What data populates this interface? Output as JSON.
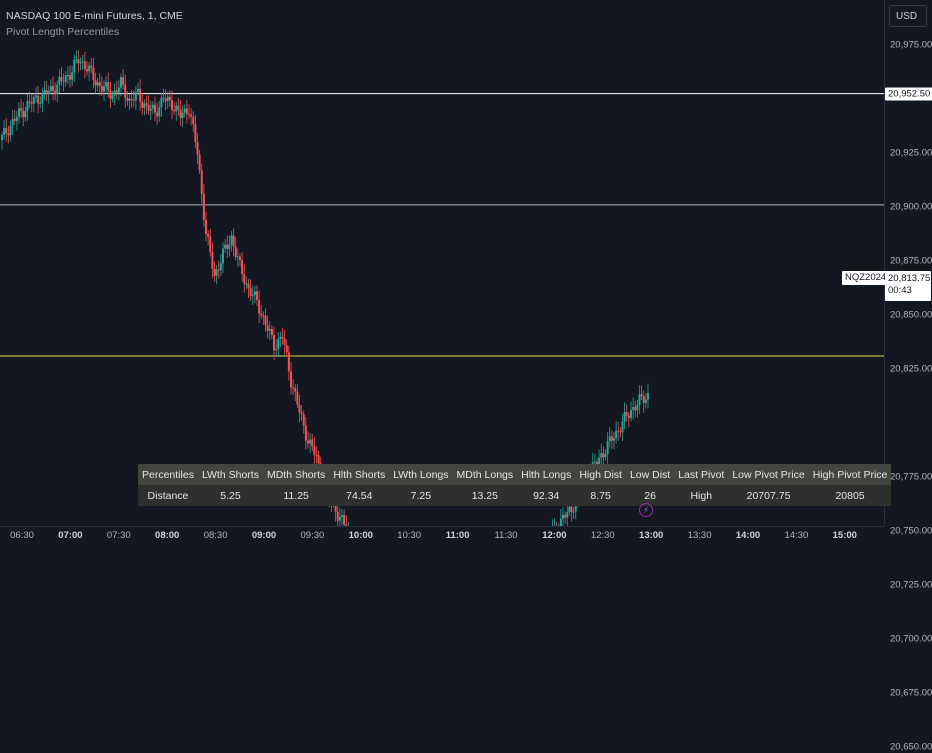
{
  "legend": {
    "title": "NASDAQ 100 E-mini Futures, 1, CME",
    "indicator": "Pivot Length Percentiles"
  },
  "price_scale": {
    "currency": "USD",
    "ticks": [
      {
        "label": "20,975.00",
        "value": 20975
      },
      {
        "label": "20,925.00",
        "value": 20925
      },
      {
        "label": "20,900.00",
        "value": 20900
      },
      {
        "label": "20,875.00",
        "value": 20875
      },
      {
        "label": "20,850.00",
        "value": 20850
      },
      {
        "label": "20,825.00",
        "value": 20825
      },
      {
        "label": "20,775.00",
        "value": 20775
      },
      {
        "label": "20,750.00",
        "value": 20750
      },
      {
        "label": "20,725.00",
        "value": 20725
      },
      {
        "label": "20,700.00",
        "value": 20700
      },
      {
        "label": "20,675.00",
        "value": 20675
      },
      {
        "label": "20,650.00",
        "value": 20650
      }
    ],
    "marked_level": {
      "label": "20,952.50",
      "value": 20952.5
    },
    "current_price": "20,813.75",
    "countdown": "00:43",
    "symbol": "NQZ2024"
  },
  "lines": {
    "white": 20952.5,
    "gray": 20901,
    "yellow": 20831
  },
  "colors": {
    "up": "#26a69a",
    "down": "#ef5350",
    "white_line": "#ffffff",
    "gray_line": "#b2b5be",
    "yellow_line": "#e8d33a"
  },
  "time_axis": {
    "ticks": [
      {
        "label": "06:30",
        "bold": false
      },
      {
        "label": "07:00",
        "bold": true
      },
      {
        "label": "07:30",
        "bold": false
      },
      {
        "label": "08:00",
        "bold": true
      },
      {
        "label": "08:30",
        "bold": false
      },
      {
        "label": "09:00",
        "bold": true
      },
      {
        "label": "09:30",
        "bold": false
      },
      {
        "label": "10:00",
        "bold": true
      },
      {
        "label": "10:30",
        "bold": false
      },
      {
        "label": "11:00",
        "bold": true
      },
      {
        "label": "11:30",
        "bold": false
      },
      {
        "label": "12:00",
        "bold": true
      },
      {
        "label": "12:30",
        "bold": false
      },
      {
        "label": "13:00",
        "bold": true
      },
      {
        "label": "13:30",
        "bold": false
      },
      {
        "label": "14:00",
        "bold": true
      },
      {
        "label": "14:30",
        "bold": false
      },
      {
        "label": "15:00",
        "bold": true
      }
    ]
  },
  "table": {
    "headers": [
      "Percentiles",
      "LWth Shorts",
      "MDth Shorts",
      "Hlth Shorts",
      "LWth Longs",
      "MDth Longs",
      "Hlth Longs",
      "High Dist",
      "Low Dist",
      "Last Pivot",
      "Low Pivot Price",
      "High Pivot Price"
    ],
    "values": [
      "Distance",
      "5.25",
      "11.25",
      "74.54",
      "7.25",
      "13.25",
      "92.34",
      "8.75",
      "26",
      "High",
      "20707.75",
      "20805"
    ]
  },
  "chart_data": {
    "type": "candlestick",
    "x": [
      "06:30",
      "06:35",
      "06:40",
      "06:45",
      "06:50",
      "06:55",
      "07:00",
      "07:05",
      "07:10",
      "07:15",
      "07:20",
      "07:25",
      "07:30",
      "07:35",
      "07:40",
      "07:45",
      "07:50",
      "07:55",
      "08:00",
      "08:05",
      "08:10",
      "08:15",
      "08:20",
      "08:25",
      "08:30",
      "08:35",
      "08:40",
      "08:45",
      "08:50",
      "08:55",
      "09:00",
      "09:05",
      "09:10",
      "09:15",
      "09:20",
      "09:25",
      "09:30",
      "09:35",
      "09:40",
      "09:45",
      "09:50",
      "09:55",
      "10:00",
      "10:05",
      "10:10",
      "10:15",
      "10:20",
      "10:25",
      "10:30",
      "10:35",
      "10:40",
      "10:45",
      "10:50",
      "10:55",
      "11:00",
      "11:05",
      "11:10",
      "11:15",
      "11:20",
      "11:25",
      "11:30",
      "11:35",
      "11:40",
      "11:45",
      "11:50",
      "11:55",
      "12:00",
      "12:05",
      "12:10",
      "12:15",
      "12:20",
      "12:25",
      "12:30",
      "12:35",
      "12:40",
      "12:45",
      "12:50"
    ],
    "close": [
      20932,
      20938,
      20943,
      20947,
      20950,
      20952,
      20955,
      20958,
      20962,
      20968,
      20965,
      20958,
      20955,
      20952,
      20957,
      20949,
      20952,
      20946,
      20944,
      20950,
      20948,
      20942,
      20946,
      20925,
      20888,
      20868,
      20878,
      20886,
      20872,
      20862,
      20856,
      20846,
      20836,
      20840,
      20820,
      20805,
      20792,
      20784,
      20768,
      20762,
      20754,
      20748,
      20742,
      20738,
      20730,
      20728,
      20734,
      20740,
      20748,
      20744,
      20730,
      20722,
      20720,
      20714,
      20708,
      20700,
      20704,
      20712,
      20720,
      20724,
      20728,
      20732,
      20736,
      20742,
      20746,
      20750,
      20756,
      20760,
      20770,
      20776,
      20782,
      20788,
      20794,
      20800,
      20806,
      20810,
      20813
    ],
    "ylim": [
      20645,
      20995
    ]
  }
}
